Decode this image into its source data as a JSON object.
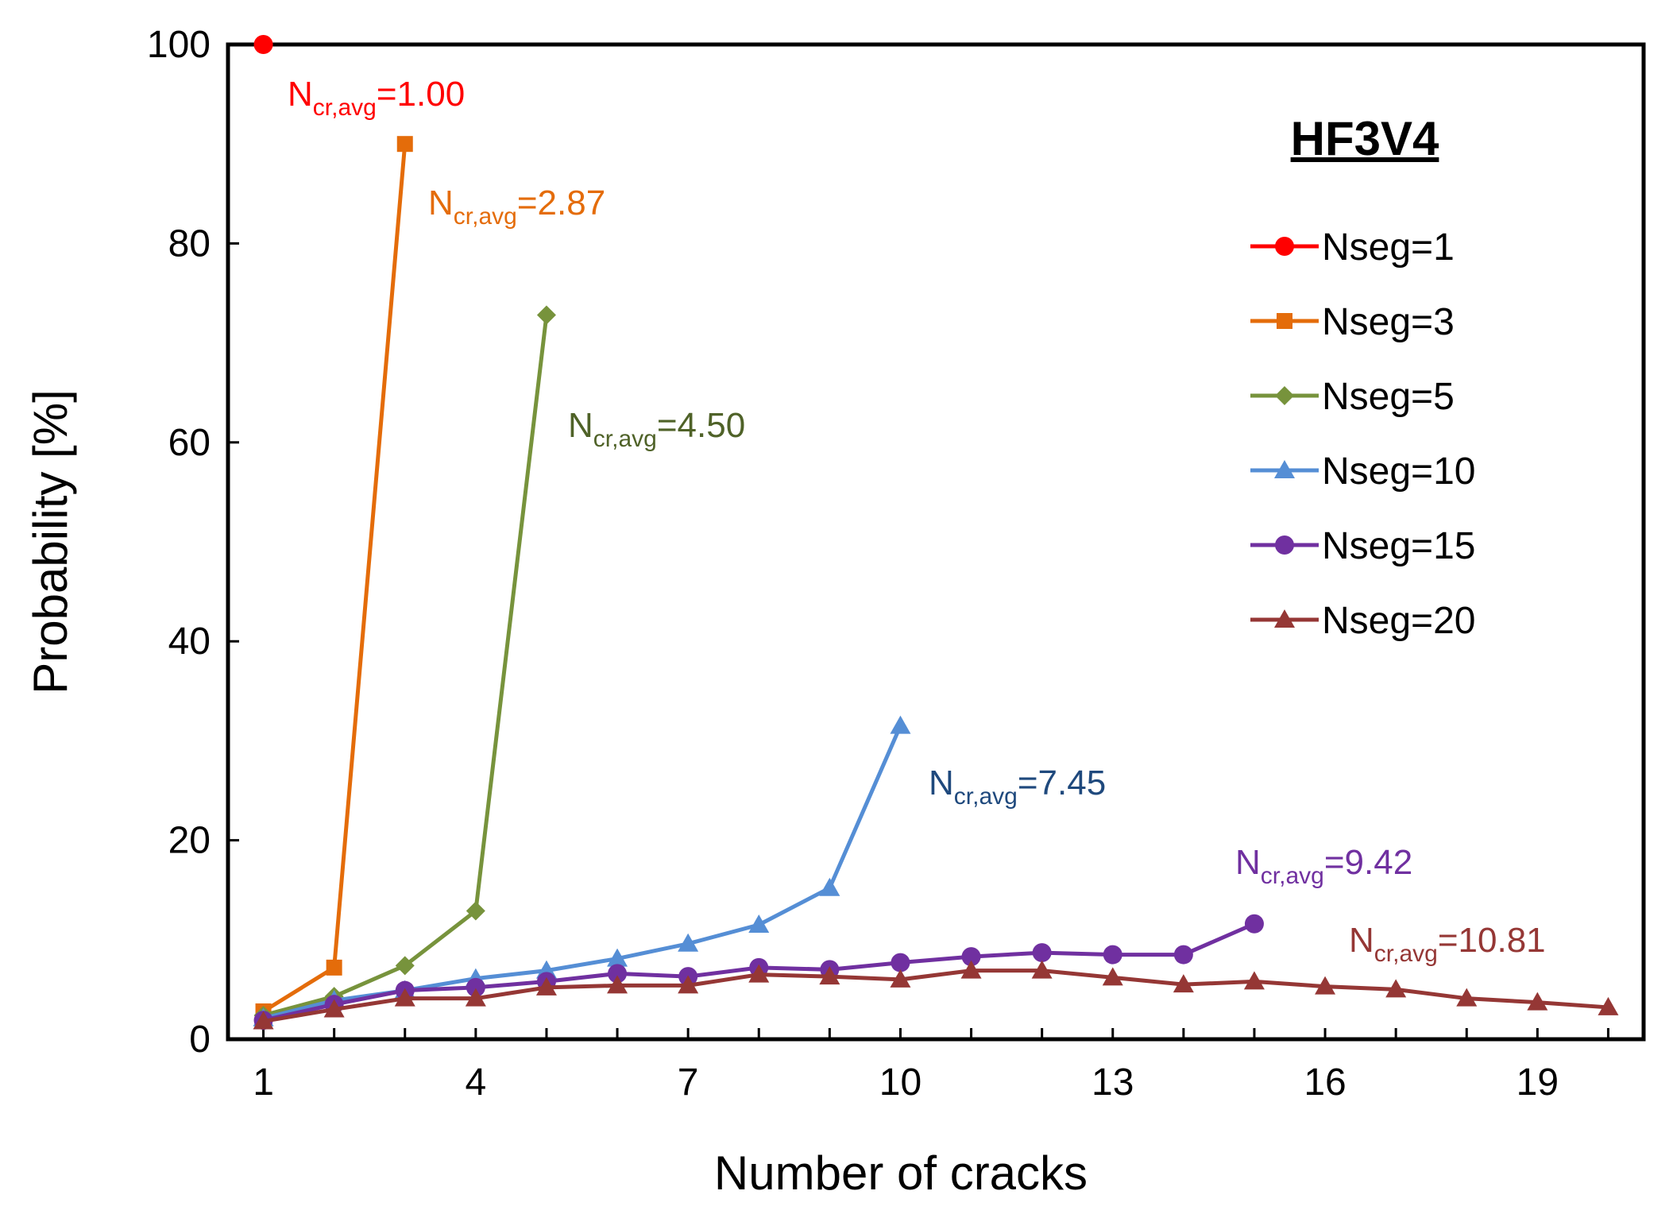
{
  "chart_data": {
    "type": "line",
    "title": "HF3V4",
    "xlabel": "Number of cracks",
    "ylabel": "Probability [%]",
    "xlim": [
      0.5,
      20.5
    ],
    "ylim": [
      0,
      100
    ],
    "x_ticks": [
      1,
      4,
      7,
      10,
      13,
      16,
      19
    ],
    "y_ticks": [
      0,
      20,
      40,
      60,
      80,
      100
    ],
    "legend_position": "right",
    "series": [
      {
        "name": "Nseg=1",
        "color": "#FF0000",
        "marker": "circle",
        "x": [
          1
        ],
        "y": [
          100
        ],
        "annotation": {
          "base": "N",
          "sub": "cr,avg",
          "value": "=1.00"
        }
      },
      {
        "name": "Nseg=3",
        "color": "#E46C0A",
        "marker": "square",
        "x": [
          1,
          2,
          3
        ],
        "y": [
          2.8,
          7.2,
          90.0
        ],
        "annotation": {
          "base": "N",
          "sub": "cr,avg",
          "value": "=2.87"
        }
      },
      {
        "name": "Nseg=5",
        "color": "#77933C",
        "marker": "diamond",
        "x": [
          1,
          2,
          3,
          4,
          5
        ],
        "y": [
          2.4,
          4.3,
          7.4,
          12.9,
          72.8
        ],
        "annotation": {
          "base": "N",
          "sub": "cr,avg",
          "value": "=4.50"
        }
      },
      {
        "name": "Nseg=10",
        "color": "#558ED5",
        "marker": "triangle",
        "x": [
          1,
          2,
          3,
          4,
          5,
          6,
          7,
          8,
          9,
          10
        ],
        "y": [
          2.1,
          3.9,
          4.9,
          6.1,
          6.9,
          8.1,
          9.6,
          11.5,
          15.2,
          31.5
        ],
        "annotation": {
          "base": "N",
          "sub": "cr,avg",
          "value": "=7.45"
        }
      },
      {
        "name": "Nseg=15",
        "color": "#7030A0",
        "marker": "circle",
        "x": [
          1,
          2,
          3,
          4,
          5,
          6,
          7,
          8,
          9,
          10,
          11,
          12,
          13,
          14,
          15
        ],
        "y": [
          1.9,
          3.5,
          4.9,
          5.2,
          5.8,
          6.6,
          6.3,
          7.2,
          7.0,
          7.7,
          8.3,
          8.7,
          8.5,
          8.5,
          11.6
        ],
        "annotation": {
          "base": "N",
          "sub": "cr,avg",
          "value": "=9.42"
        }
      },
      {
        "name": "Nseg=20",
        "color": "#953735",
        "marker": "triangle",
        "x": [
          1,
          2,
          3,
          4,
          5,
          6,
          7,
          8,
          9,
          10,
          11,
          12,
          13,
          14,
          15,
          16,
          17,
          18,
          19,
          20
        ],
        "y": [
          1.8,
          3.0,
          4.1,
          4.1,
          5.2,
          5.4,
          5.4,
          6.5,
          6.3,
          6.0,
          6.9,
          6.9,
          6.2,
          5.5,
          5.8,
          5.3,
          5.0,
          4.1,
          3.7,
          3.2
        ],
        "annotation": {
          "base": "N",
          "sub": "cr,avg",
          "value": "=10.81"
        }
      }
    ]
  }
}
